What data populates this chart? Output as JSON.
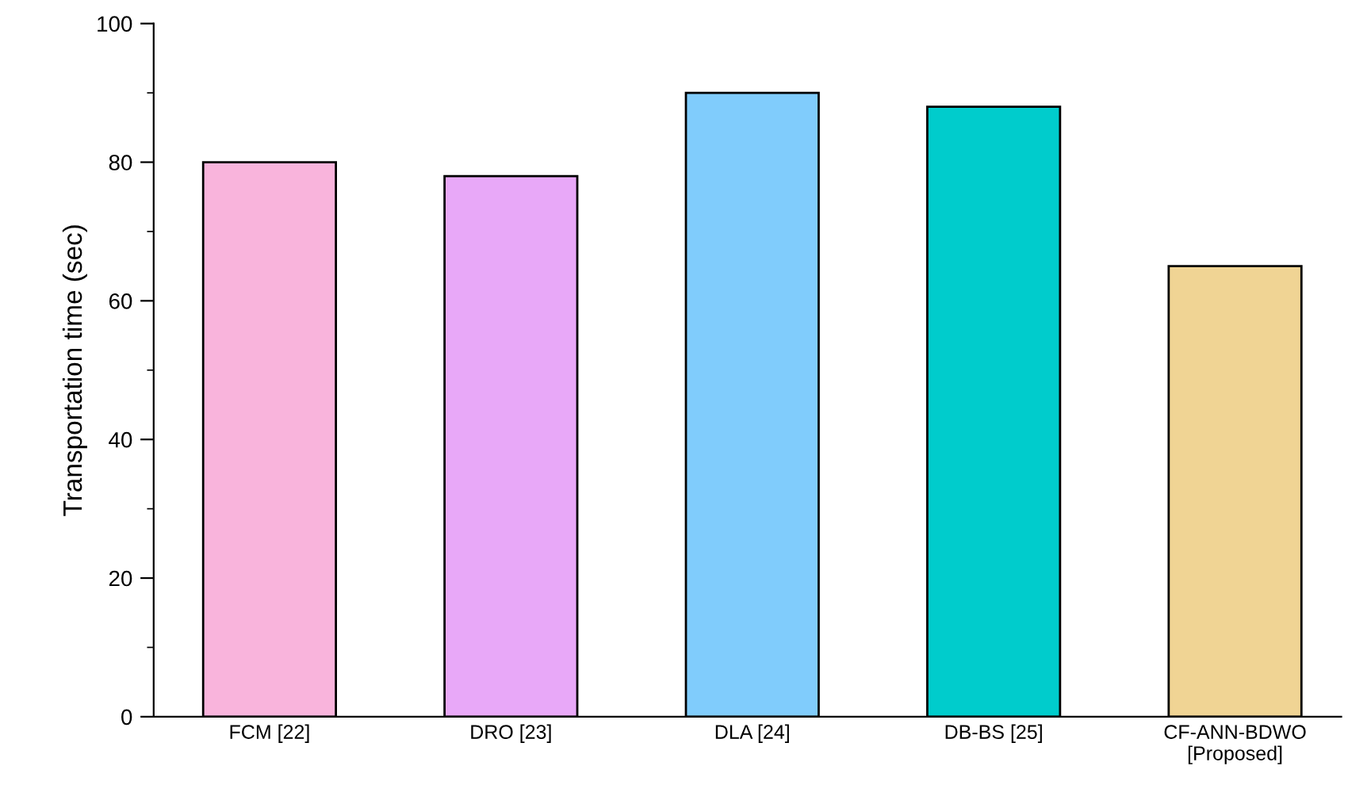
{
  "chart_data": {
    "type": "bar",
    "ylabel": "Transportation time (sec)",
    "categories": [
      "FCM [22]",
      "DRO [23]",
      "DLA [24]",
      "DB-BS [25]",
      "CF-ANN-BDWO\n[Proposed]"
    ],
    "values": [
      80,
      78,
      90,
      88,
      65
    ],
    "colors": [
      "#f9b4dc",
      "#e8a8f8",
      "#80ccfc",
      "#00cccc",
      "#f0d494"
    ],
    "ylim": [
      0,
      100
    ],
    "yticks": [
      0,
      {
        "value": 10,
        "label": null
      },
      20,
      {
        "value": 30,
        "label": null
      },
      40,
      {
        "value": 50,
        "label": null
      },
      60,
      {
        "value": 70,
        "label": null
      },
      80,
      {
        "value": 90,
        "label": null
      },
      100
    ],
    "grid": false
  }
}
